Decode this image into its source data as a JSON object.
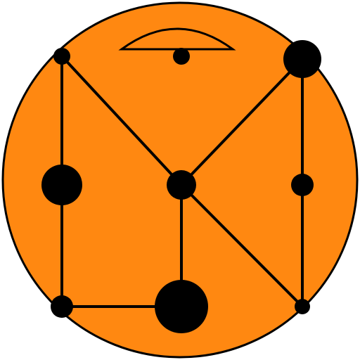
{
  "colors": {
    "board_fill": "#FF8811",
    "ink": "#000000"
  },
  "icons": {
    "top_marker": "eye-arc-icon"
  },
  "nodes": [
    {
      "id": "n1",
      "size": "small"
    },
    {
      "id": "n2",
      "size": "large"
    },
    {
      "id": "n3",
      "size": "small"
    },
    {
      "id": "n4",
      "size": "medium"
    },
    {
      "id": "n5",
      "size": "extra-large"
    },
    {
      "id": "n6",
      "size": "large"
    },
    {
      "id": "n7",
      "size": "small"
    },
    {
      "id": "n8",
      "size": "small"
    },
    {
      "id": "n9",
      "size": "small"
    }
  ],
  "edges": [
    [
      "n1",
      "n2"
    ],
    [
      "n2",
      "n3"
    ],
    [
      "n3",
      "n5"
    ],
    [
      "n1",
      "n4"
    ],
    [
      "n4",
      "n6"
    ],
    [
      "n4",
      "n5"
    ],
    [
      "n4",
      "n9"
    ],
    [
      "n6",
      "n7"
    ],
    [
      "n7",
      "n8"
    ],
    [
      "n8",
      "n9"
    ]
  ]
}
